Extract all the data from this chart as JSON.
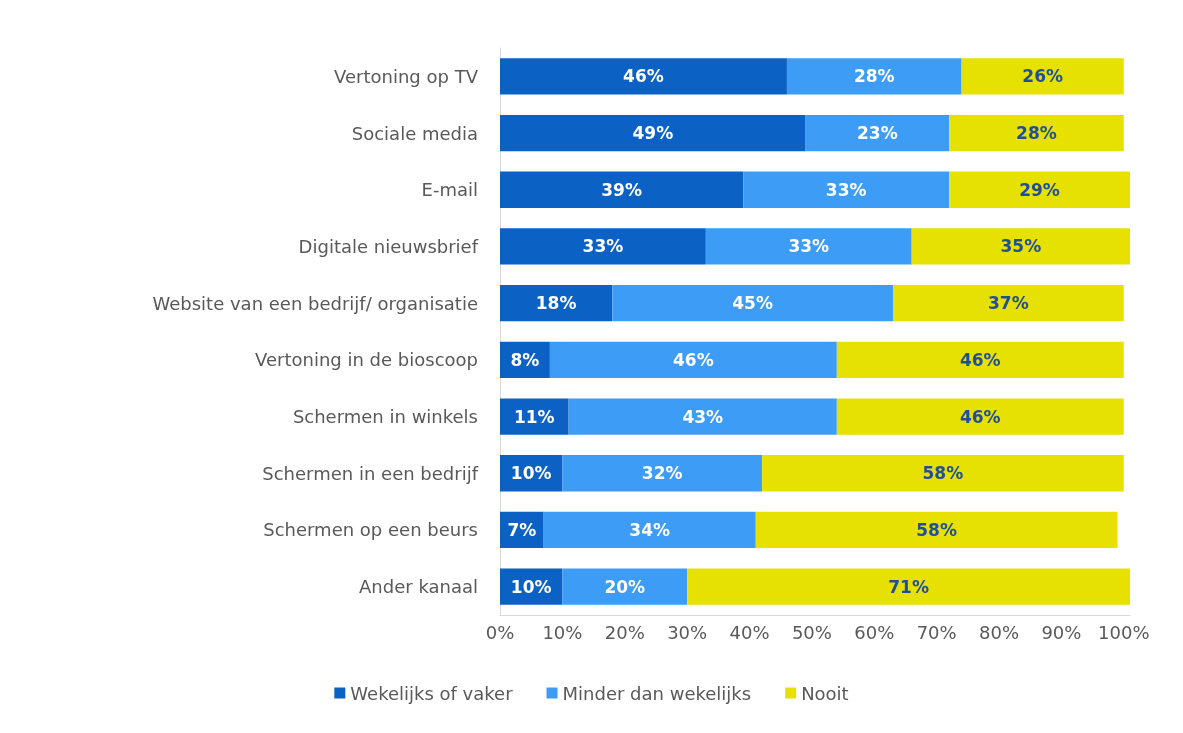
{
  "chart_data": {
    "type": "bar",
    "orientation": "horizontal",
    "stacked": true,
    "categories": [
      "Vertoning op TV",
      "Sociale media",
      "E-mail",
      "Digitale nieuwsbrief",
      "Website van een bedrijf/ organisatie",
      "Vertoning in de bioscoop",
      "Schermen in winkels",
      "Schermen in een bedrijf",
      "Schermen op een beurs",
      "Ander kanaal"
    ],
    "series": [
      {
        "name": "Wekelijks of vaker",
        "color": "#0b61c4",
        "values": [
          46,
          49,
          39,
          33,
          18,
          8,
          11,
          10,
          7,
          10
        ],
        "value_labels": [
          "46%",
          "49%",
          "39%",
          "33%",
          "18%",
          "8%",
          "11%",
          "10%",
          "7%",
          "10%"
        ]
      },
      {
        "name": "Minder dan wekelijks",
        "color": "#3d9cf5",
        "values": [
          28,
          23,
          33,
          33,
          45,
          46,
          43,
          32,
          34,
          20
        ],
        "value_labels": [
          "28%",
          "23%",
          "33%",
          "33%",
          "45%",
          "46%",
          "43%",
          "32%",
          "34%",
          "20%"
        ]
      },
      {
        "name": "Nooit",
        "color": "#e6e100",
        "values": [
          26,
          28,
          29,
          35,
          37,
          46,
          46,
          58,
          58,
          71
        ],
        "value_labels": [
          "26%",
          "28%",
          "29%",
          "35%",
          "37%",
          "46%",
          "46%",
          "58%",
          "58%",
          "71%"
        ]
      }
    ],
    "xlim": [
      0,
      101
    ],
    "xticks": [
      {
        "value": 0,
        "label": "0%"
      },
      {
        "value": 10,
        "label": "10%"
      },
      {
        "value": 20,
        "label": "20%"
      },
      {
        "value": 30,
        "label": "30%"
      },
      {
        "value": 40,
        "label": "40%"
      },
      {
        "value": 50,
        "label": "50%"
      },
      {
        "value": 60,
        "label": "60%"
      },
      {
        "value": 70,
        "label": "70%"
      },
      {
        "value": 80,
        "label": "80%"
      },
      {
        "value": 90,
        "label": "90%"
      },
      {
        "value": 100,
        "label": "100%"
      }
    ],
    "grid": false,
    "legend": "bottom"
  }
}
